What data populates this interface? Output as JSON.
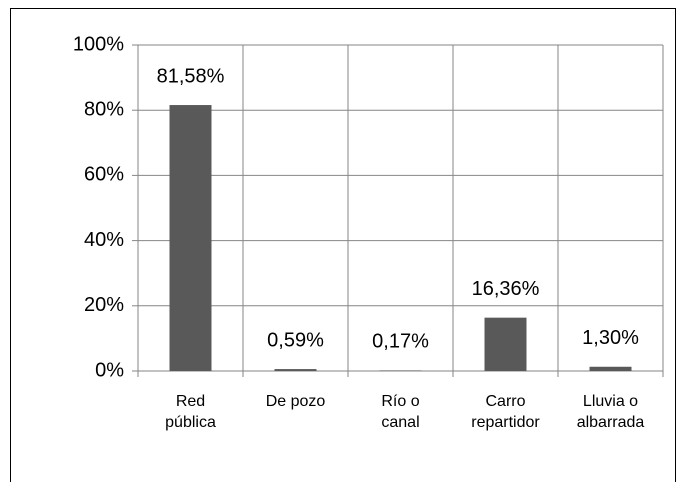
{
  "chart_data": {
    "type": "bar",
    "categories": [
      "Red\npública",
      "De pozo",
      "Río o\ncanal",
      "Carro\nrepartidor",
      "Lluvia o\nalbarrada"
    ],
    "values": [
      81.58,
      0.59,
      0.17,
      16.36,
      1.3
    ],
    "value_labels": [
      "81,58%",
      "0,59%",
      "0,17%",
      "16,36%",
      "1,30%"
    ],
    "color": "#595959",
    "ylim": [
      0,
      100
    ],
    "yticks": [
      {
        "value": 0,
        "label": "0%"
      },
      {
        "value": 20,
        "label": "20%"
      },
      {
        "value": 40,
        "label": "40%"
      },
      {
        "value": 60,
        "label": "60%"
      },
      {
        "value": 80,
        "label": "80%"
      },
      {
        "value": 100,
        "label": "100%"
      }
    ],
    "grid": true
  }
}
